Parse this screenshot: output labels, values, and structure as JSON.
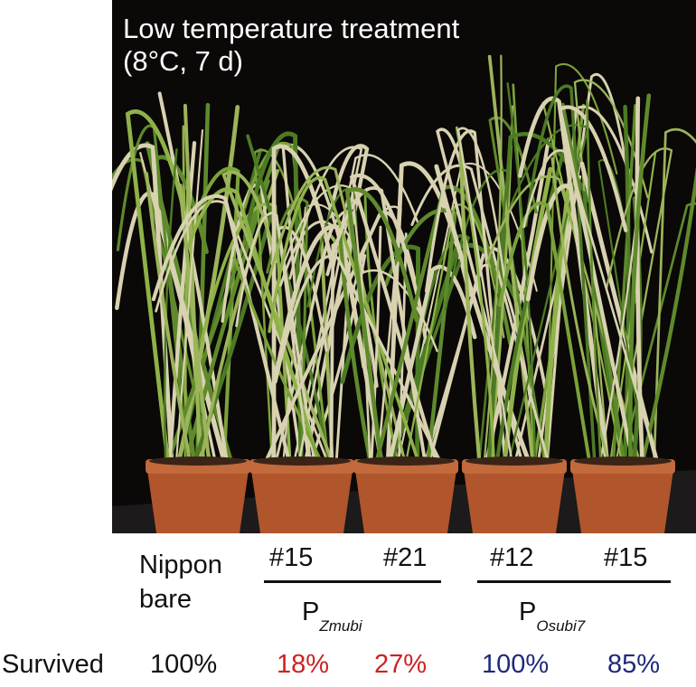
{
  "photo": {
    "title_line1": "Low temperature treatment",
    "title_line2": "(8°C, 7 d)"
  },
  "wildtype": {
    "line1": "Nippon",
    "line2": "bare"
  },
  "zmubi": {
    "promoter": "P",
    "subscript": "Zmubi",
    "lines": [
      "#15",
      "#21"
    ]
  },
  "osubi7": {
    "promoter": "P",
    "subscript": "Osubi7",
    "lines": [
      "#12",
      "#15"
    ]
  },
  "survival": {
    "label": "Survived",
    "values": [
      "100%",
      "18%",
      "27%",
      "100%",
      "85%"
    ]
  },
  "colors": {
    "background": "#0b0808",
    "red": "#cc2222",
    "blue": "#1e2a7a",
    "pot": "#b0552c"
  }
}
